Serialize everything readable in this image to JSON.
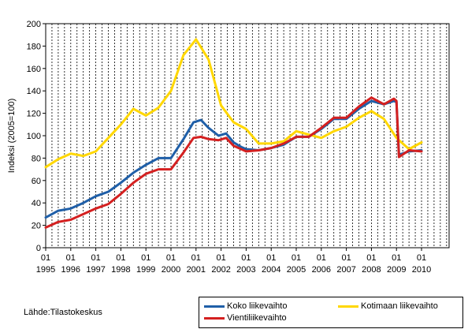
{
  "chart_data": {
    "type": "line",
    "ylabel": "Indeksi (2005=100)",
    "ylim": [
      0,
      200
    ],
    "yticks": [
      "0",
      "20",
      "40",
      "60",
      "80",
      "100",
      "120",
      "140",
      "160",
      "180",
      "200"
    ],
    "xlim": [
      1995,
      2011.1
    ],
    "xticks": [
      {
        "month": "01",
        "year": "1995"
      },
      {
        "month": "01",
        "year": "1996"
      },
      {
        "month": "01",
        "year": "1997"
      },
      {
        "month": "01",
        "year": "1998"
      },
      {
        "month": "01",
        "year": "1999"
      },
      {
        "month": "01",
        "year": "2000"
      },
      {
        "month": "01",
        "year": "2001"
      },
      {
        "month": "01",
        "year": "2002"
      },
      {
        "month": "01",
        "year": "2003"
      },
      {
        "month": "01",
        "year": "2004"
      },
      {
        "month": "01",
        "year": "2005"
      },
      {
        "month": "01",
        "year": "2006"
      },
      {
        "month": "01",
        "year": "2007"
      },
      {
        "month": "01",
        "year": "2008"
      },
      {
        "month": "01",
        "year": "2009"
      },
      {
        "month": "01",
        "year": "2010"
      }
    ],
    "grid": {
      "vertical": "dashed",
      "horizontal": "none"
    },
    "series": [
      {
        "name": "Koko liikevaihto",
        "color": "#1f5fa8",
        "x": [
          1995.0,
          1995.5,
          1996.0,
          1996.5,
          1997.0,
          1997.5,
          1998.0,
          1998.5,
          1999.0,
          1999.5,
          2000.0,
          2000.5,
          2000.9,
          2001.2,
          2001.5,
          2001.9,
          2002.2,
          2002.5,
          2002.8,
          2003.0,
          2003.5,
          2004.0,
          2004.5,
          2005.0,
          2005.5,
          2006.0,
          2006.5,
          2007.0,
          2007.5,
          2008.0,
          2008.5,
          2008.9,
          2009.0,
          2009.1,
          2009.5,
          2010.0
        ],
        "y": [
          27,
          33,
          35,
          40,
          46,
          50,
          58,
          67,
          74,
          80,
          80,
          97,
          112,
          114,
          107,
          100,
          102,
          94,
          90,
          88,
          87,
          89,
          92,
          99,
          99,
          106,
          115,
          115,
          124,
          131,
          128,
          131,
          130,
          83,
          86,
          87
        ]
      },
      {
        "name": "Kotimaan liikevaihto",
        "color": "#ffd700",
        "x": [
          1995.0,
          1995.5,
          1996.0,
          1996.5,
          1997.0,
          1997.5,
          1998.0,
          1998.5,
          1999.0,
          1999.5,
          2000.0,
          2000.5,
          2001.0,
          2001.5,
          2002.0,
          2002.5,
          2003.0,
          2003.5,
          2004.0,
          2004.5,
          2005.0,
          2005.5,
          2006.0,
          2006.5,
          2007.0,
          2007.5,
          2008.0,
          2008.5,
          2009.0,
          2009.5,
          2010.0
        ],
        "y": [
          72,
          79,
          84,
          82,
          86,
          98,
          110,
          124,
          118,
          125,
          140,
          172,
          186,
          168,
          127,
          112,
          106,
          93,
          93,
          95,
          104,
          101,
          98,
          104,
          108,
          116,
          122,
          115,
          98,
          88,
          94
        ]
      },
      {
        "name": "Vientiliikevaihto",
        "color": "#d42020",
        "x": [
          1995.0,
          1995.5,
          1996.0,
          1996.5,
          1997.0,
          1997.5,
          1998.0,
          1998.5,
          1999.0,
          1999.5,
          2000.0,
          2000.5,
          2000.9,
          2001.2,
          2001.5,
          2001.9,
          2002.2,
          2002.5,
          2002.8,
          2003.0,
          2003.5,
          2004.0,
          2004.5,
          2005.0,
          2005.5,
          2006.0,
          2006.5,
          2007.0,
          2007.5,
          2008.0,
          2008.5,
          2008.9,
          2009.0,
          2009.1,
          2009.5,
          2010.0
        ],
        "y": [
          18,
          23,
          25,
          30,
          35,
          39,
          48,
          58,
          66,
          70,
          70,
          85,
          98,
          99,
          97,
          96,
          98,
          91,
          88,
          86,
          87,
          89,
          93,
          99,
          99,
          107,
          116,
          116,
          126,
          134,
          128,
          133,
          131,
          81,
          87,
          86
        ]
      }
    ],
    "legend_position": "bottom-right",
    "source": "Lähde:Tilastokeskus"
  }
}
